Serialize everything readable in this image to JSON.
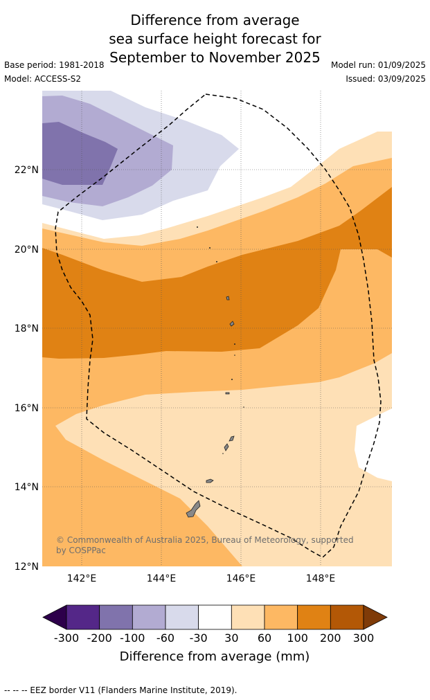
{
  "title_lines": [
    "Difference from average",
    "sea surface height forecast for",
    "September to November 2025"
  ],
  "base_period": "Base period: 1981-2018",
  "model": "Model: ACCESS-S2",
  "model_run": "Model run: 01/09/2025",
  "issued": "Issued: 03/09/2025",
  "copyright": "© Commonwealth of Australia 2025, Bureau of Meteorology, supported by COSPPac",
  "footer": "--  --  -- EEZ border V11 (Flanders Marine Institute, 2019).",
  "map": {
    "lat_ticks": [
      "22°N",
      "20°N",
      "18°N",
      "16°N",
      "14°N",
      "12°N"
    ],
    "lon_ticks": [
      "142°E",
      "144°E",
      "146°E",
      "148°E"
    ]
  },
  "colorbar": {
    "title": "Difference from average (mm)",
    "tick_labels": [
      "-300",
      "-200",
      "-100",
      "-60",
      "-30",
      "30",
      "60",
      "100",
      "200",
      "300"
    ],
    "colors": {
      "below_min": "#2d004b",
      "bins": [
        "#542788",
        "#8073ac",
        "#b2abd2",
        "#d8daeb",
        "#ffffff",
        "#fee0b6",
        "#fdb863",
        "#e08214",
        "#b35806"
      ],
      "above_max": "#7f3b08"
    }
  }
}
